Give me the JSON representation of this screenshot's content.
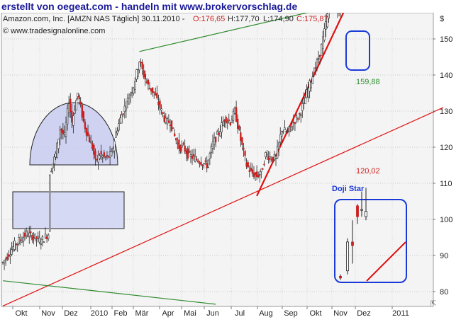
{
  "headline": "erstellt von oegeat.com - handeln mit www.brokervorschlag.de",
  "chart_data": {
    "type": "candlestick",
    "title": "Amazon.com, Inc. [AMZN NAS  Täglich] 30.11.2010 - O:176,65 H:177,70 L:174,90 C:175,87",
    "title_parts": {
      "name": "Amazon.com, Inc. [AMZN NAS  Täglich] 30.11.2010 -",
      "open": "O:176,65",
      "high": "H:177,70",
      "low": "L:174,90",
      "close": "C:175,87"
    },
    "source": "© www.tradesignalonline.com",
    "currency_symbol": "$",
    "ylim": [
      78,
      187
    ],
    "y_ticks": [
      80,
      90,
      100,
      110,
      120,
      130,
      140,
      150,
      160,
      170,
      180
    ],
    "x_labels": [
      "Okt",
      "Nov",
      "Dez",
      "2010",
      "Feb",
      "Mär",
      "Apr",
      "Mai",
      "Jun",
      "Jul",
      "Aug",
      "Sep",
      "Okt",
      "Nov",
      "Dez",
      "2011"
    ],
    "grid": true,
    "price_path": [
      [
        0,
        88
      ],
      [
        8,
        93
      ],
      [
        16,
        96
      ],
      [
        22,
        95
      ],
      [
        26,
        94
      ],
      [
        31,
        96
      ],
      [
        32,
        113
      ],
      [
        36,
        118
      ],
      [
        39,
        125
      ],
      [
        42,
        123
      ],
      [
        45,
        133
      ],
      [
        47,
        127
      ],
      [
        51,
        135
      ],
      [
        55,
        127
      ],
      [
        58,
        123
      ],
      [
        61,
        120
      ],
      [
        63,
        116
      ],
      [
        66,
        118
      ],
      [
        70,
        117
      ],
      [
        74,
        118
      ],
      [
        77,
        124
      ],
      [
        81,
        129
      ],
      [
        85,
        133
      ],
      [
        89,
        137
      ],
      [
        93,
        144
      ],
      [
        96,
        140
      ],
      [
        99,
        137
      ],
      [
        103,
        135
      ],
      [
        107,
        131
      ],
      [
        111,
        127
      ],
      [
        114,
        127
      ],
      [
        117,
        123
      ],
      [
        120,
        120
      ],
      [
        123,
        120
      ],
      [
        126,
        118
      ],
      [
        130,
        117
      ],
      [
        135,
        116
      ],
      [
        139,
        115
      ],
      [
        143,
        121
      ],
      [
        147,
        124
      ],
      [
        151,
        128
      ],
      [
        155,
        127
      ],
      [
        158,
        130
      ],
      [
        162,
        122
      ],
      [
        166,
        115
      ],
      [
        169,
        113
      ],
      [
        173,
        112
      ],
      [
        176,
        113
      ],
      [
        179,
        118
      ],
      [
        183,
        117
      ],
      [
        186,
        117
      ],
      [
        190,
        125
      ],
      [
        194,
        124
      ],
      [
        198,
        127
      ],
      [
        202,
        129
      ],
      [
        207,
        135
      ],
      [
        212,
        141
      ],
      [
        216,
        146
      ],
      [
        219,
        152
      ],
      [
        223,
        161
      ],
      [
        225,
        163
      ],
      [
        228,
        158
      ],
      [
        230,
        159
      ],
      [
        233,
        160
      ],
      [
        236,
        163
      ],
      [
        239,
        166
      ],
      [
        242,
        165
      ],
      [
        244,
        171
      ],
      [
        246,
        168
      ],
      [
        249,
        163
      ],
      [
        251,
        164
      ],
      [
        255,
        166
      ],
      [
        258,
        174
      ],
      [
        261,
        175
      ],
      [
        265,
        178
      ]
    ],
    "trendlines": [
      {
        "name": "green resistance",
        "color": "#2e8b2e",
        "x0": 93,
        "y0": 146.5,
        "x1": 300,
        "y1": 166.0
      },
      {
        "name": "red steep support",
        "color": "#e01010",
        "x0": 173,
        "y0": 106.5,
        "x1": 270,
        "y1": 190.0
      },
      {
        "name": "red long support",
        "color": "#e01010",
        "x0": 0,
        "y0": 76.0,
        "x1": 300,
        "y1": 131.0
      },
      {
        "name": "green falling",
        "color": "#2e8b2e",
        "x0": 0,
        "y0": 83.0,
        "x1": 145,
        "y1": 76.5
      }
    ],
    "level_labels": [
      {
        "text": "159,88",
        "value": 159.88,
        "color": "#2e8b2e"
      },
      {
        "text": "120,02",
        "value": 120.02,
        "color": "#d02020"
      }
    ],
    "annotations": {
      "doji_star": "Doji Star",
      "inset_candles": [
        {
          "o": 81.5,
          "c": 81,
          "h": 82,
          "l": 80.5
        },
        {
          "o": 83,
          "c": 91,
          "h": 92,
          "l": 82
        },
        {
          "o": 91,
          "c": 90,
          "h": 97,
          "l": 85
        },
        {
          "o": 101,
          "c": 98,
          "h": 101.5,
          "l": 96
        },
        {
          "o": 100,
          "c": 100,
          "h": 105,
          "l": 98
        },
        {
          "o": 98,
          "c": 99.5,
          "h": 106,
          "l": 97
        }
      ]
    },
    "colors": {
      "up": "#2a2a2a",
      "down": "#cc2020",
      "headline": "#1a1a9a",
      "highlight_box": "#1a3ad8",
      "arc_fill": "#c8cbf0",
      "rect_fill": "#d6d9f4",
      "doji_label": "#1a3ad8"
    }
  }
}
